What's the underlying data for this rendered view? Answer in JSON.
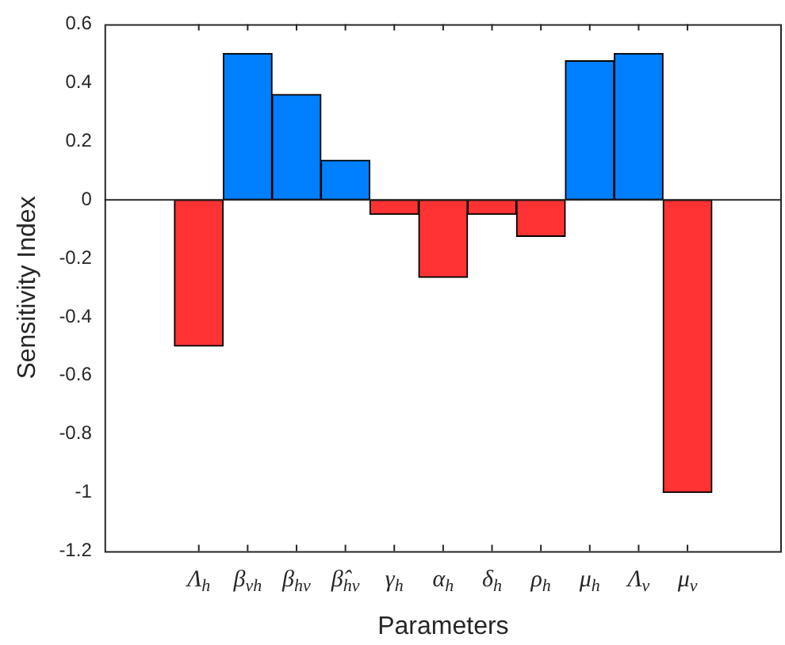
{
  "chart_data": {
    "type": "bar",
    "xlabel": "Parameters",
    "ylabel": "Sensitivity Index",
    "categories": [
      "Λ$_{h}$",
      "β$_{vh}$",
      "β$_{hv}$",
      "β̂$_{hv}$",
      "γ$_{h}$",
      "α$_{h}$",
      "δ$_{h}$",
      "ρ$_{h}$",
      "μ$_{h}$",
      "Λ$_{v}$",
      "μ$_{v}$"
    ],
    "values": [
      -0.5,
      0.5,
      0.36,
      0.135,
      -0.05,
      -0.265,
      -0.05,
      -0.125,
      0.475,
      0.5,
      -1
    ],
    "colors": [
      "#ff3333",
      "#0080ff",
      "#0080ff",
      "#0080ff",
      "#ff3333",
      "#ff3333",
      "#ff3333",
      "#ff3333",
      "#0080ff",
      "#0080ff",
      "#ff3333"
    ],
    "ylim": [
      -1.2,
      0.6
    ],
    "yticks": [
      -1.2,
      -1,
      -0.8,
      -0.6,
      -0.4,
      -0.2,
      0,
      0.2,
      0.4,
      0.6
    ],
    "legend": false
  }
}
